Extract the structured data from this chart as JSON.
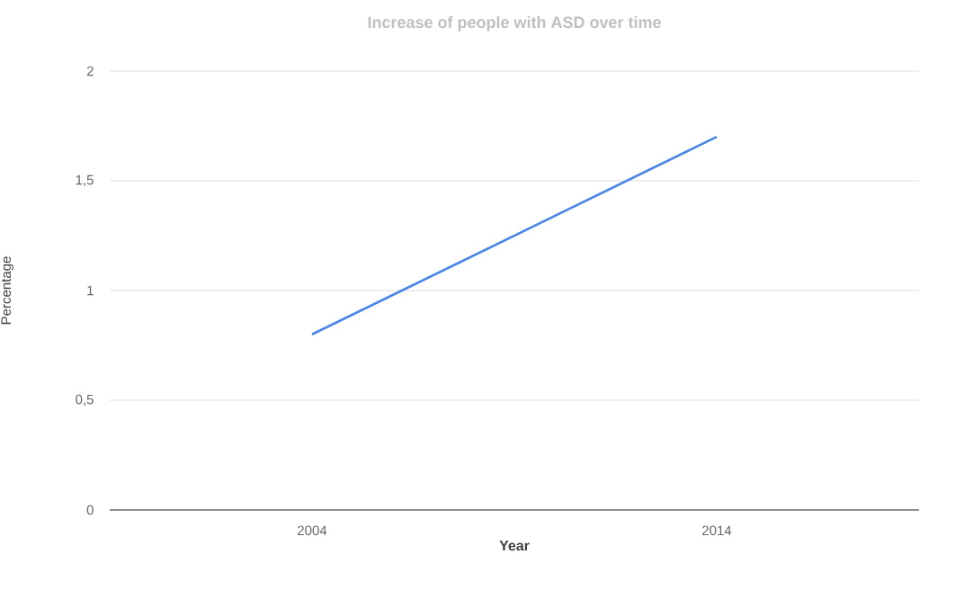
{
  "chart_data": {
    "type": "line",
    "title": "Increase of people with ASD over time",
    "xlabel": "Year",
    "ylabel": "Percentage",
    "categories": [
      "2004",
      "2014"
    ],
    "series": [
      {
        "color": "#4a86e8",
        "values": [
          0.8,
          1.7
        ]
      }
    ],
    "ylim": [
      0,
      2
    ],
    "yticks": [
      0,
      {
        "value": 0.5,
        "label": "0,5"
      },
      1,
      {
        "value": 1.5,
        "label": "1,5"
      },
      2
    ],
    "grid": "y",
    "line_style": "solid"
  }
}
